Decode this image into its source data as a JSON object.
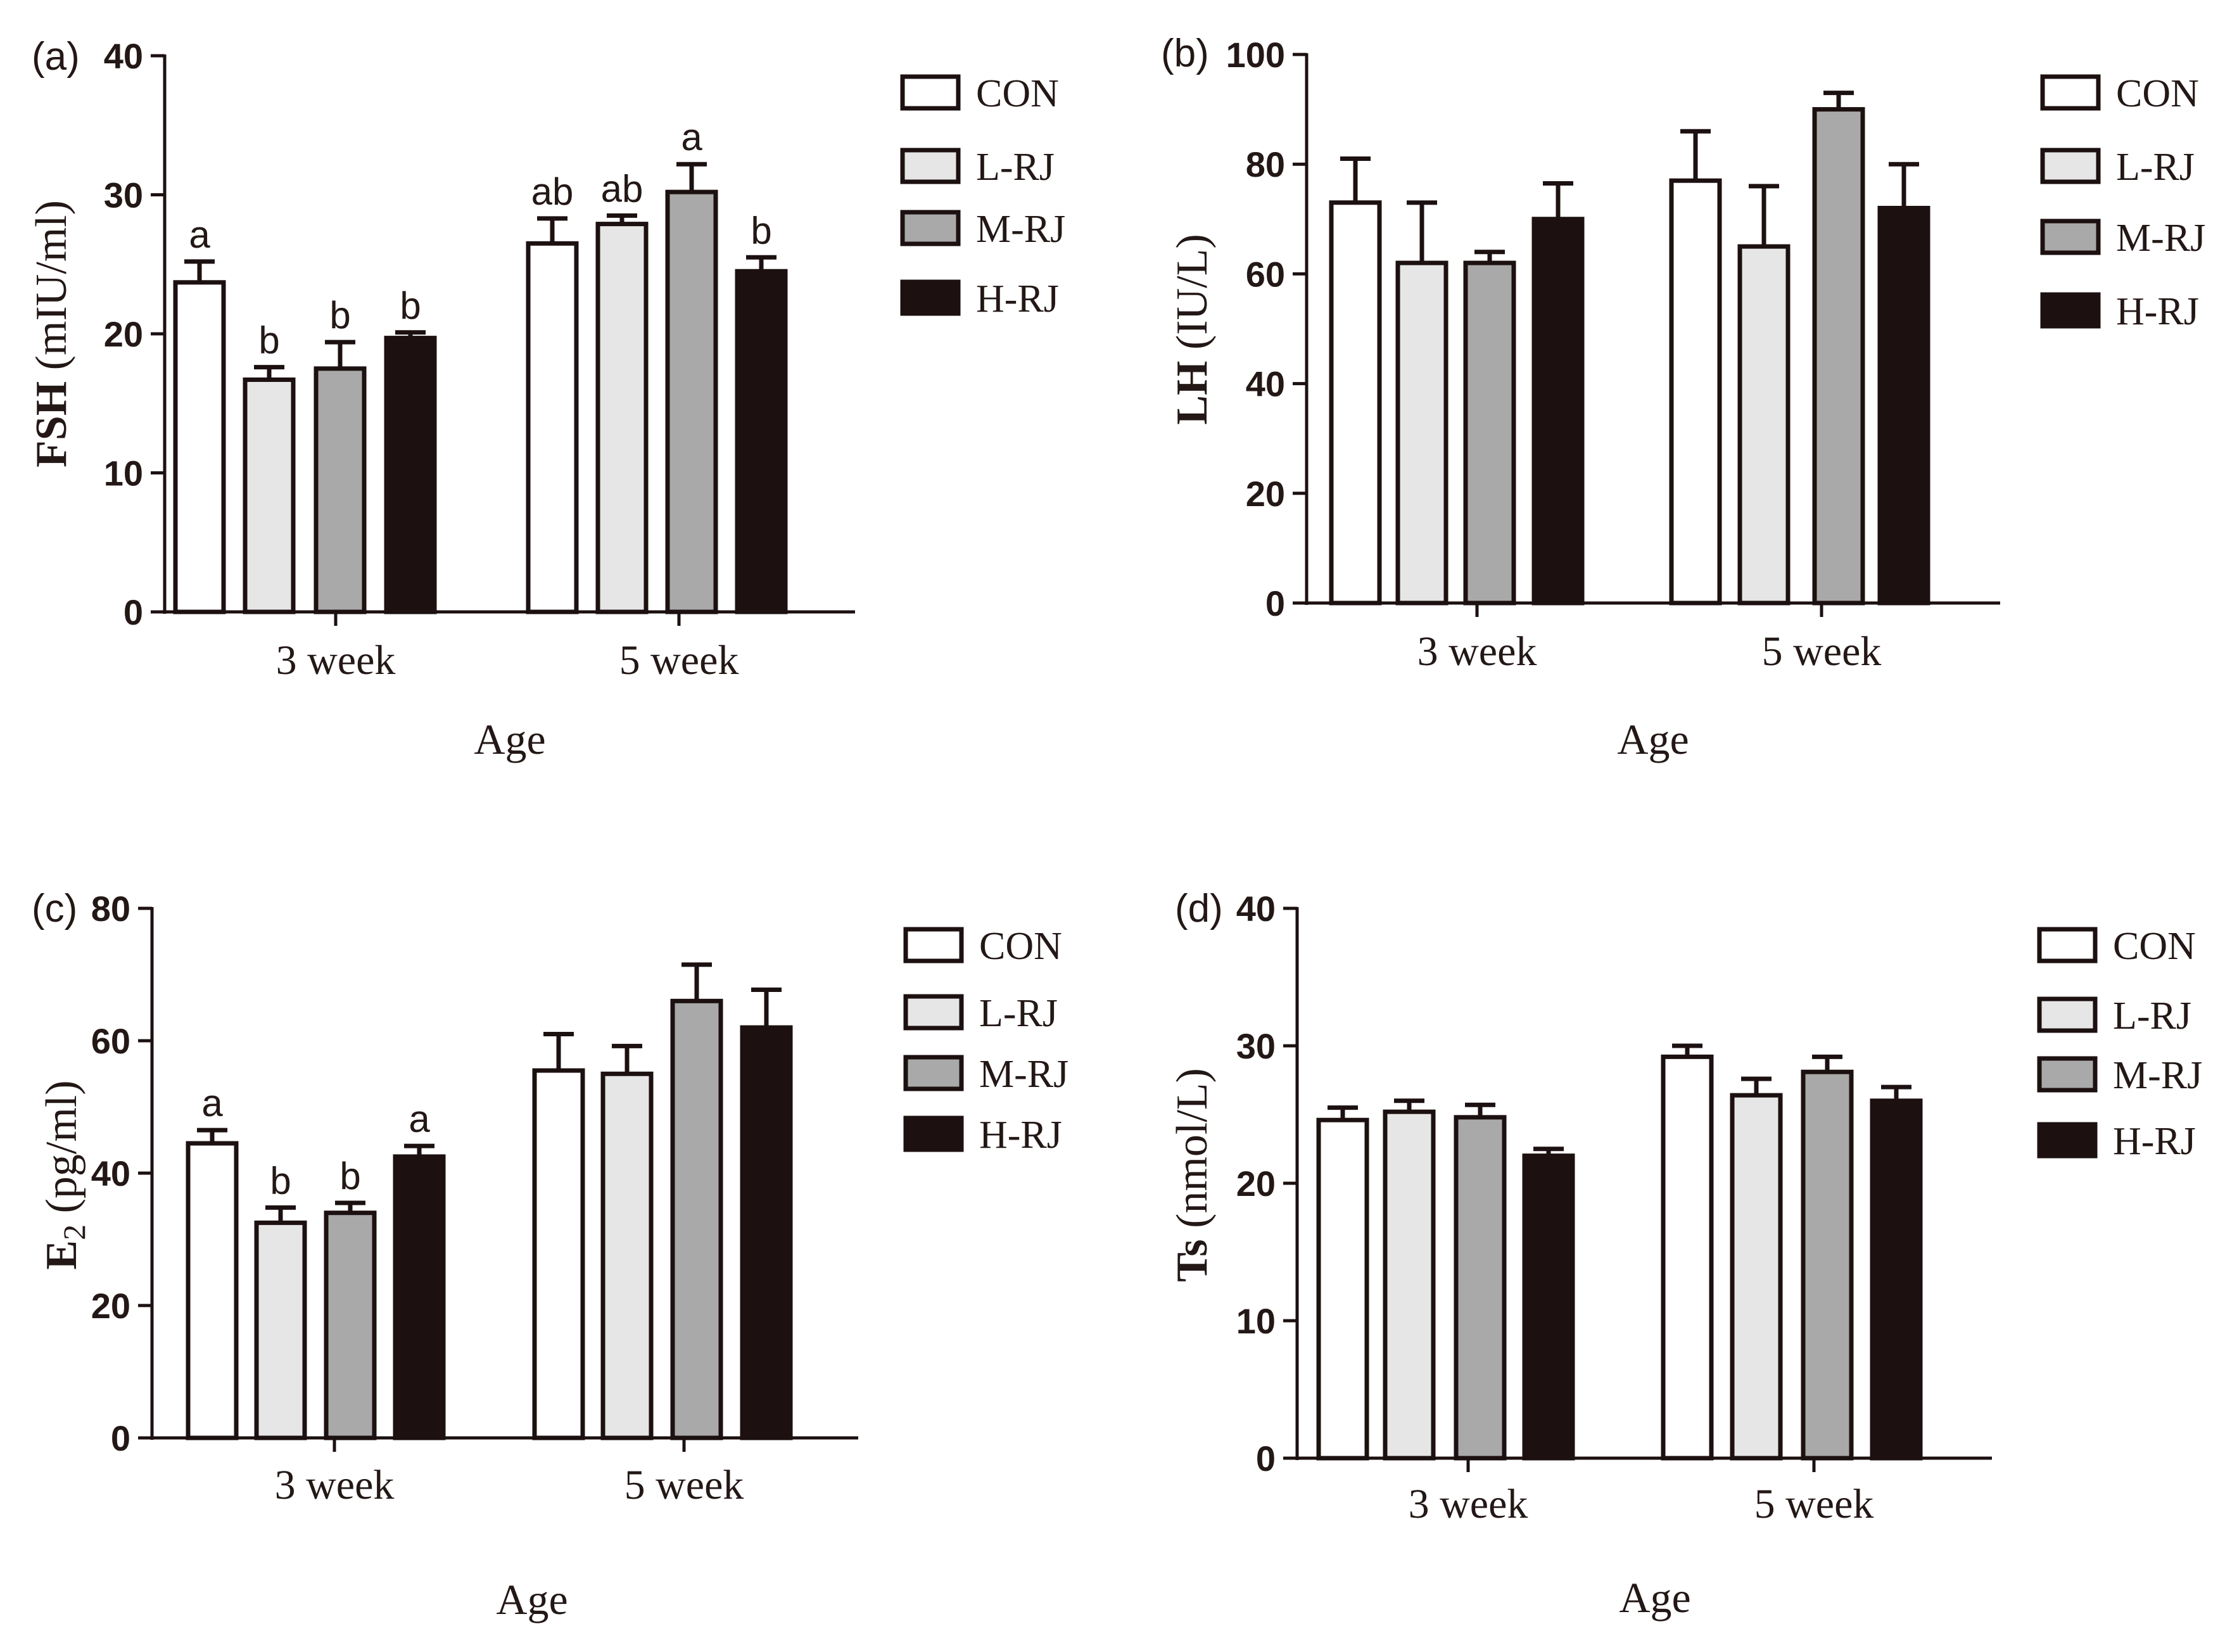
{
  "figure": {
    "legend": [
      {
        "label": "CON",
        "color": "#ffffff"
      },
      {
        "label": "L-RJ",
        "color": "#e6e6e6"
      },
      {
        "label": "M-RJ",
        "color": "#a9a9a9"
      },
      {
        "label": "H-RJ",
        "color": "#1c1010"
      }
    ],
    "stroke_color": "#1c1010",
    "text_color": "#231816"
  },
  "chart_data": [
    {
      "panel_label": "(a)",
      "type": "bar",
      "ylabel": "FSH (mIU/ml)",
      "ylabel_main": "FSH",
      "ylabel_sub": "",
      "ylabel_unit": "(mIU/ml)",
      "xlabel": "Age",
      "categories": [
        "3 week",
        "5 week"
      ],
      "yticks": [
        0,
        10,
        20,
        30,
        40
      ],
      "ylim": [
        0,
        40
      ],
      "series": [
        {
          "name": "CON",
          "values": [
            23.7,
            26.5
          ],
          "errors": [
            1.5,
            1.8
          ],
          "letters": [
            "a",
            "ab"
          ]
        },
        {
          "name": "L-RJ",
          "values": [
            16.7,
            27.9
          ],
          "errors": [
            0.9,
            0.6
          ],
          "letters": [
            "b",
            "ab"
          ]
        },
        {
          "name": "M-RJ",
          "values": [
            17.5,
            30.2
          ],
          "errors": [
            1.9,
            2.0
          ],
          "letters": [
            "b",
            "a"
          ]
        },
        {
          "name": "H-RJ",
          "values": [
            19.7,
            24.5
          ],
          "errors": [
            0.4,
            1.0
          ],
          "letters": [
            "b",
            "b"
          ]
        }
      ]
    },
    {
      "panel_label": "(b)",
      "type": "bar",
      "ylabel": "LH (IU/L)",
      "ylabel_main": "LH",
      "ylabel_sub": "",
      "ylabel_unit": "(IU/L)",
      "xlabel": "Age",
      "categories": [
        "3 week",
        "5 week"
      ],
      "yticks": [
        0,
        20,
        40,
        60,
        80,
        100
      ],
      "ylim": [
        0,
        100
      ],
      "series": [
        {
          "name": "CON",
          "values": [
            73,
            77
          ],
          "errors": [
            8,
            9
          ],
          "letters": [
            "",
            ""
          ]
        },
        {
          "name": "L-RJ",
          "values": [
            62,
            65
          ],
          "errors": [
            11,
            11
          ],
          "letters": [
            "",
            ""
          ]
        },
        {
          "name": "M-RJ",
          "values": [
            62,
            90
          ],
          "errors": [
            2,
            3
          ],
          "letters": [
            "",
            ""
          ]
        },
        {
          "name": "H-RJ",
          "values": [
            70,
            72
          ],
          "errors": [
            6.5,
            8
          ],
          "letters": [
            "",
            ""
          ]
        }
      ]
    },
    {
      "panel_label": "(c)",
      "type": "bar",
      "ylabel": "E2 (pg/ml)",
      "ylabel_main": "E",
      "ylabel_sub": "2",
      "ylabel_unit": "(pg/ml)",
      "xlabel": "Age",
      "categories": [
        "3 week",
        "5 week"
      ],
      "yticks": [
        0,
        20,
        40,
        60,
        80
      ],
      "ylim": [
        0,
        80
      ],
      "series": [
        {
          "name": "CON",
          "values": [
            44.5,
            55.5
          ],
          "errors": [
            2,
            5.5
          ],
          "letters": [
            "a",
            ""
          ]
        },
        {
          "name": "L-RJ",
          "values": [
            32.5,
            55
          ],
          "errors": [
            2.3,
            4.2
          ],
          "letters": [
            "b",
            ""
          ]
        },
        {
          "name": "M-RJ",
          "values": [
            34,
            66
          ],
          "errors": [
            1.5,
            5.5
          ],
          "letters": [
            "b",
            ""
          ]
        },
        {
          "name": "H-RJ",
          "values": [
            42.5,
            62
          ],
          "errors": [
            1.6,
            5.7
          ],
          "letters": [
            "a",
            ""
          ]
        }
      ]
    },
    {
      "panel_label": "(d)",
      "type": "bar",
      "ylabel": "Ts (nmol/L)",
      "ylabel_main": "Ts",
      "ylabel_sub": "",
      "ylabel_unit": "(nmol/L)",
      "xlabel": "Age",
      "categories": [
        "3 week",
        "5 week"
      ],
      "yticks": [
        0,
        10,
        20,
        30,
        40
      ],
      "ylim": [
        0,
        40
      ],
      "series": [
        {
          "name": "CON",
          "values": [
            24.6,
            29.2
          ],
          "errors": [
            0.9,
            0.8
          ],
          "letters": [
            "",
            ""
          ]
        },
        {
          "name": "L-RJ",
          "values": [
            25.2,
            26.4
          ],
          "errors": [
            0.8,
            1.2
          ],
          "letters": [
            "",
            ""
          ]
        },
        {
          "name": "M-RJ",
          "values": [
            24.8,
            28.1
          ],
          "errors": [
            0.9,
            1.1
          ],
          "letters": [
            "",
            ""
          ]
        },
        {
          "name": "H-RJ",
          "values": [
            22,
            26
          ],
          "errors": [
            0.5,
            1.0
          ],
          "letters": [
            "",
            ""
          ]
        }
      ]
    }
  ]
}
